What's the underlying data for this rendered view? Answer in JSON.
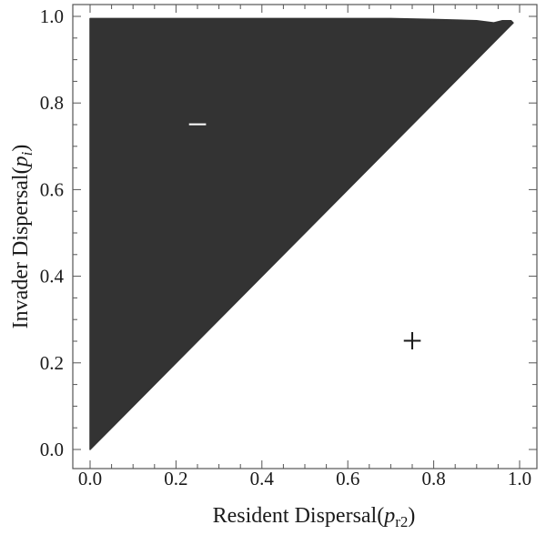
{
  "chart_data": {
    "type": "area",
    "title": "",
    "xlabel": {
      "main": "Resident Dispersal(",
      "var": "p",
      "sub": "r2",
      "close": ")"
    },
    "ylabel": {
      "main": "Invader Dispersal(",
      "var": "p",
      "sub": "i",
      "close": ")"
    },
    "xlim": [
      0,
      1
    ],
    "ylim": [
      0,
      1
    ],
    "x_ticks": [
      "0.0",
      "0.2",
      "0.4",
      "0.6",
      "0.8",
      "1.0"
    ],
    "y_ticks": [
      "0.0",
      "0.2",
      "0.4",
      "0.6",
      "0.8",
      "1.0"
    ],
    "x_tick_values": [
      0,
      0.2,
      0.4,
      0.6,
      0.8,
      1.0
    ],
    "y_tick_values": [
      0,
      0.2,
      0.4,
      0.6,
      0.8,
      1.0
    ],
    "grid": false,
    "regions": [
      {
        "sign": "−",
        "label_at": [
          0.25,
          0.75
        ],
        "fill": "#333333",
        "label_color": "#ffffff",
        "boundary": [
          [
            0,
            0
          ],
          [
            0,
            0.995
          ],
          [
            0.2,
            0.995
          ],
          [
            0.5,
            0.995
          ],
          [
            0.7,
            0.995
          ],
          [
            0.8,
            0.993
          ],
          [
            0.9,
            0.99
          ],
          [
            0.94,
            0.985
          ],
          [
            0.96,
            0.99
          ],
          [
            0.98,
            0.99
          ],
          [
            0.985,
            0.985
          ],
          [
            0.98,
            0.98
          ],
          [
            0,
            0
          ]
        ]
      },
      {
        "sign": "+",
        "label_at": [
          0.75,
          0.25
        ],
        "fill": "#ffffff",
        "label_color": "#1a1a1a"
      }
    ],
    "colors": {
      "frame": "#555555",
      "text": "#1a1a1a",
      "region_fill": "#333333"
    }
  }
}
